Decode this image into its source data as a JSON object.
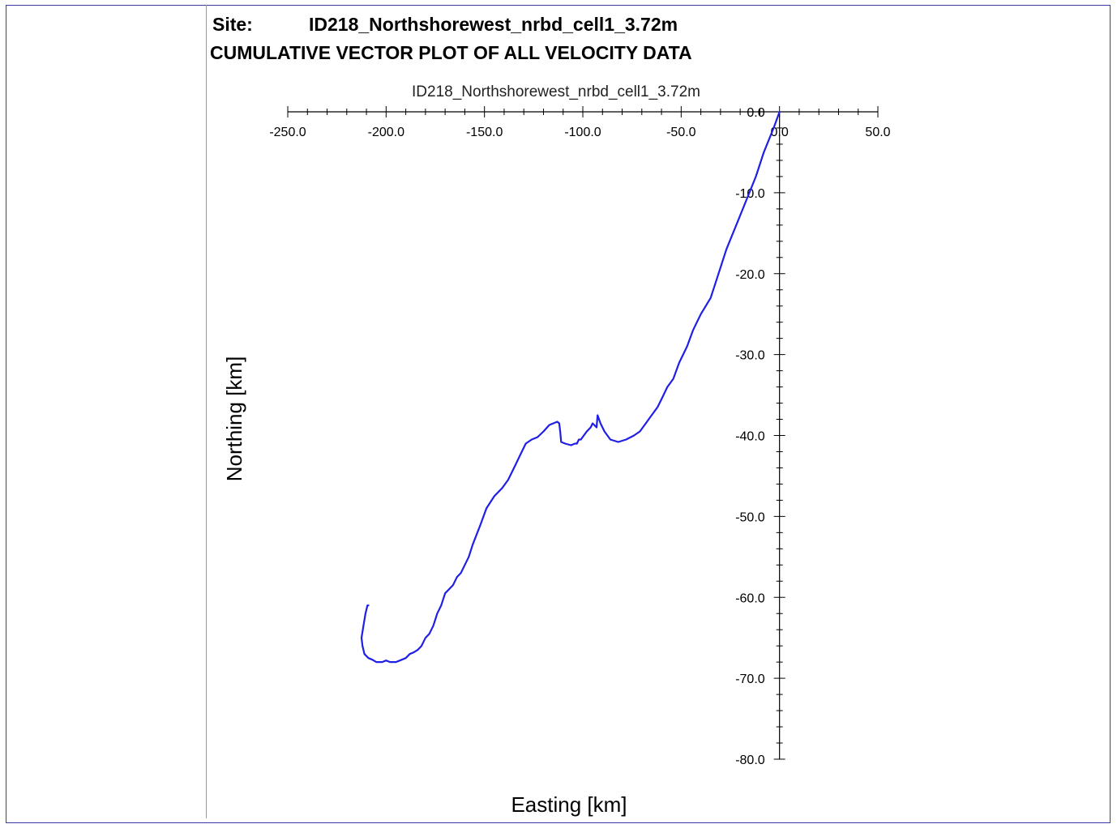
{
  "header": {
    "site_label": "Site:",
    "site_value": "ID218_Northshorewest_nrbd_cell1_3.72m",
    "plot_heading": "CUMULATIVE VECTOR PLOT OF ALL VELOCITY DATA"
  },
  "colors": {
    "series": "#1f1fe6",
    "frame": "#3a3aa6",
    "axis": "#000000"
  },
  "chart_data": {
    "type": "line",
    "title": "ID218_Northshorewest_nrbd_cell1_3.72m",
    "xlabel": "Easting [km]",
    "ylabel": "Northing [km]",
    "xlim": [
      -250,
      50
    ],
    "ylim": [
      -80,
      0
    ],
    "x_axis_position": "top",
    "y_axis_position": "x=0",
    "grid": false,
    "x_ticks": [
      "-250.0",
      "-200.0",
      "-150.0",
      "-100.0",
      "-50.0",
      "0.0",
      "50.0"
    ],
    "y_ticks": [
      "0.0",
      "-10.0",
      "-20.0",
      "-30.0",
      "-40.0",
      "-50.0",
      "-60.0",
      "-70.0",
      "-80.0"
    ],
    "series": [
      {
        "x": [
          0,
          -3,
          -8,
          -12,
          -17,
          -22,
          -27,
          -31,
          -35,
          -40,
          -44,
          -47,
          -51,
          -54,
          -57,
          -60,
          -62,
          -65,
          -68,
          -71,
          -74,
          -78,
          -82,
          -86,
          -89,
          -91,
          -92.5,
          -93,
          -95,
          -96,
          -98,
          -99.5,
          -101,
          -102,
          -103,
          -104,
          -106,
          -109,
          -111,
          -111.5,
          -112,
          -113,
          -115,
          -117,
          -120,
          -123,
          -126,
          -129,
          -132,
          -135,
          -138,
          -141,
          -145,
          -149,
          -152,
          -156,
          -158,
          -160,
          -162,
          -164,
          -166,
          -168,
          -170,
          -172,
          -174,
          -176,
          -178,
          -180,
          -182,
          -184,
          -186,
          -188,
          -190,
          -193,
          -195,
          -198,
          -200,
          -202,
          -205,
          -207,
          -209,
          -211,
          -212,
          -212.5,
          -211.5,
          -210.5,
          -209.5,
          -209
        ],
        "y": [
          0,
          -2,
          -5,
          -8,
          -11,
          -14,
          -17,
          -20,
          -23,
          -25,
          -27,
          -29,
          -31,
          -33,
          -34,
          -35.5,
          -36.5,
          -37.5,
          -38.5,
          -39.5,
          -40,
          -40.5,
          -40.8,
          -40.5,
          -39.5,
          -38.5,
          -37.5,
          -39,
          -38.5,
          -39,
          -39.5,
          -40,
          -40.5,
          -40.5,
          -41,
          -41,
          -41.2,
          -41,
          -40.8,
          -39.5,
          -38.5,
          -38.3,
          -38.5,
          -38.7,
          -39.5,
          -40.2,
          -40.5,
          -41,
          -42.5,
          -44,
          -45.5,
          -46.5,
          -47.5,
          -49,
          -51,
          -53.5,
          -55,
          -56,
          -57,
          -57.5,
          -58.5,
          -59,
          -59.5,
          -61,
          -62,
          -63.5,
          -64.5,
          -65,
          -66,
          -66.5,
          -66.8,
          -67,
          -67.5,
          -67.8,
          -68,
          -68,
          -67.8,
          -68,
          -68,
          -67.7,
          -67.5,
          -67,
          -66,
          -65,
          -63.5,
          -62,
          -61,
          -61
        ]
      }
    ]
  }
}
